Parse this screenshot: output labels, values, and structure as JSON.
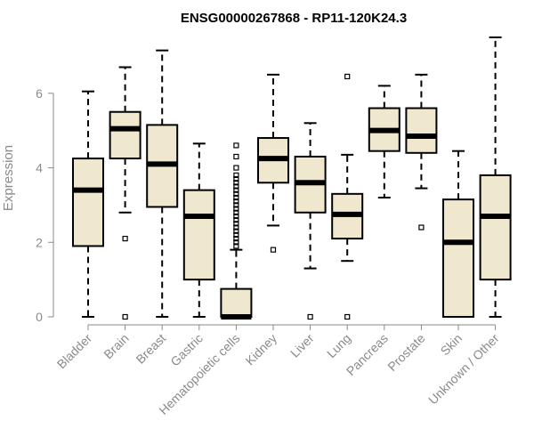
{
  "chart_data": {
    "type": "boxplot",
    "title": "ENSG00000267868 - RP11-120K24.3",
    "ylabel": "Expression",
    "xlabel": "",
    "ylim": [
      0,
      7.5
    ],
    "yticks": [
      0,
      2,
      4,
      6
    ],
    "grid": false,
    "colors": {
      "box_fill": "#efe8cf",
      "stroke": "#000000",
      "axis_text": "#8a8a8a"
    },
    "categories": [
      "Bladder",
      "Brain",
      "Breast",
      "Gastric",
      "Hematopoietic cells",
      "Kidney",
      "Liver",
      "Lung",
      "Pancreas",
      "Prostate",
      "Skin",
      "Unknown / Other"
    ],
    "boxes": [
      {
        "category": "Bladder",
        "whisker_low": 0,
        "q1": 1.9,
        "median": 3.4,
        "q3": 4.25,
        "whisker_high": 6.05,
        "outliers": []
      },
      {
        "category": "Brain",
        "whisker_low": 2.8,
        "q1": 4.25,
        "median": 5.05,
        "q3": 5.5,
        "whisker_high": 6.7,
        "outliers": [
          2.1,
          0
        ]
      },
      {
        "category": "Breast",
        "whisker_low": 0,
        "q1": 2.95,
        "median": 4.1,
        "q3": 5.15,
        "whisker_high": 7.15,
        "outliers": []
      },
      {
        "category": "Gastric",
        "whisker_low": 0,
        "q1": 1.0,
        "median": 2.7,
        "q3": 3.4,
        "whisker_high": 4.65,
        "outliers": []
      },
      {
        "category": "Hematopoietic cells",
        "whisker_low": 0,
        "q1": 0,
        "median": 0,
        "q3": 0.75,
        "whisker_high": 1.8,
        "outliers": [
          1.9,
          2.0,
          2.1,
          2.2,
          2.3,
          2.4,
          2.5,
          2.6,
          2.7,
          2.8,
          2.9,
          3.0,
          3.1,
          3.2,
          3.3,
          3.4,
          3.5,
          3.6,
          3.7,
          3.8,
          4.0,
          4.3,
          4.6
        ]
      },
      {
        "category": "Kidney",
        "whisker_low": 2.45,
        "q1": 3.6,
        "median": 4.25,
        "q3": 4.8,
        "whisker_high": 6.5,
        "outliers": [
          1.8
        ]
      },
      {
        "category": "Liver",
        "whisker_low": 1.3,
        "q1": 2.8,
        "median": 3.6,
        "q3": 4.3,
        "whisker_high": 5.2,
        "outliers": [
          0
        ]
      },
      {
        "category": "Lung",
        "whisker_low": 1.5,
        "q1": 2.1,
        "median": 2.75,
        "q3": 3.3,
        "whisker_high": 4.35,
        "outliers": [
          6.45,
          0
        ]
      },
      {
        "category": "Pancreas",
        "whisker_low": 3.2,
        "q1": 4.45,
        "median": 5.0,
        "q3": 5.6,
        "whisker_high": 6.2,
        "outliers": []
      },
      {
        "category": "Prostate",
        "whisker_low": 3.45,
        "q1": 4.4,
        "median": 4.85,
        "q3": 5.6,
        "whisker_high": 6.5,
        "outliers": [
          2.4
        ]
      },
      {
        "category": "Skin",
        "whisker_low": 0,
        "q1": 0,
        "median": 2.0,
        "q3": 3.15,
        "whisker_high": 4.45,
        "outliers": []
      },
      {
        "category": "Unknown / Other",
        "whisker_low": 0,
        "q1": 1.0,
        "median": 2.7,
        "q3": 3.8,
        "whisker_high": 7.5,
        "outliers": []
      }
    ]
  }
}
